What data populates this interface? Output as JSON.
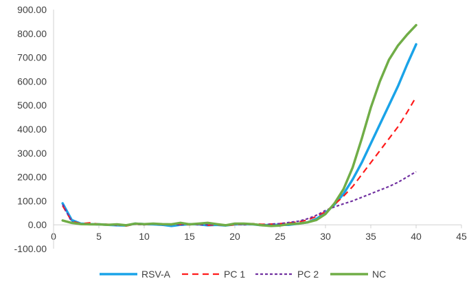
{
  "chart_data": {
    "type": "line",
    "title": "",
    "xlabel": "",
    "ylabel": "",
    "xlim": [
      0,
      45
    ],
    "ylim": [
      -100,
      900
    ],
    "x_ticks": [
      0,
      5,
      10,
      15,
      20,
      25,
      30,
      35,
      40,
      45
    ],
    "x_tick_labels": [
      "0",
      "5",
      "10",
      "15",
      "20",
      "25",
      "30",
      "35",
      "40",
      "45"
    ],
    "y_ticks": [
      -100,
      0,
      100,
      200,
      300,
      400,
      500,
      600,
      700,
      800,
      900
    ],
    "y_tick_labels": [
      "-100.00",
      "0.00",
      "100.00",
      "200.00",
      "300.00",
      "400.00",
      "500.00",
      "600.00",
      "700.00",
      "800.00",
      "900.00"
    ],
    "grid": false,
    "legend_position": "bottom",
    "x": [
      1,
      2,
      3,
      4,
      5,
      6,
      7,
      8,
      9,
      10,
      11,
      12,
      13,
      14,
      15,
      16,
      17,
      18,
      19,
      20,
      21,
      22,
      23,
      24,
      25,
      26,
      27,
      28,
      29,
      30,
      31,
      32,
      33,
      34,
      35,
      36,
      37,
      38,
      39,
      40
    ],
    "series": [
      {
        "name": "RSV-A",
        "color": "#1aa3e8",
        "dash": "solid",
        "values": [
          90,
          20,
          5,
          3,
          2,
          0,
          -2,
          -3,
          5,
          3,
          2,
          0,
          -5,
          0,
          3,
          2,
          -2,
          0,
          -3,
          2,
          3,
          2,
          -2,
          0,
          0,
          0,
          5,
          10,
          25,
          50,
          85,
          130,
          190,
          260,
          340,
          420,
          500,
          580,
          670,
          755
        ]
      },
      {
        "name": "PC 1",
        "color": "#ff1a1a",
        "dash": "dashed",
        "values": [
          80,
          15,
          5,
          8,
          3,
          2,
          0,
          -5,
          3,
          0,
          5,
          2,
          0,
          2,
          0,
          3,
          -2,
          0,
          -3,
          0,
          3,
          5,
          2,
          3,
          5,
          8,
          12,
          20,
          35,
          55,
          85,
          120,
          160,
          210,
          260,
          310,
          360,
          410,
          470,
          535
        ]
      },
      {
        "name": "PC 2",
        "color": "#7030a0",
        "dash": "dotted",
        "values": [
          85,
          12,
          3,
          2,
          0,
          2,
          -3,
          0,
          2,
          0,
          3,
          0,
          2,
          0,
          3,
          0,
          0,
          3,
          0,
          2,
          0,
          2,
          0,
          3,
          5,
          10,
          15,
          25,
          40,
          60,
          75,
          88,
          100,
          115,
          130,
          145,
          160,
          178,
          200,
          222
        ]
      },
      {
        "name": "NC",
        "color": "#70ad47",
        "dash": "solid",
        "values": [
          18,
          8,
          3,
          2,
          2,
          0,
          2,
          -2,
          5,
          3,
          5,
          3,
          2,
          8,
          2,
          5,
          8,
          3,
          -2,
          5,
          5,
          3,
          -2,
          -5,
          -3,
          3,
          5,
          10,
          20,
          45,
          90,
          150,
          240,
          360,
          490,
          600,
          690,
          750,
          795,
          835
        ]
      }
    ]
  }
}
